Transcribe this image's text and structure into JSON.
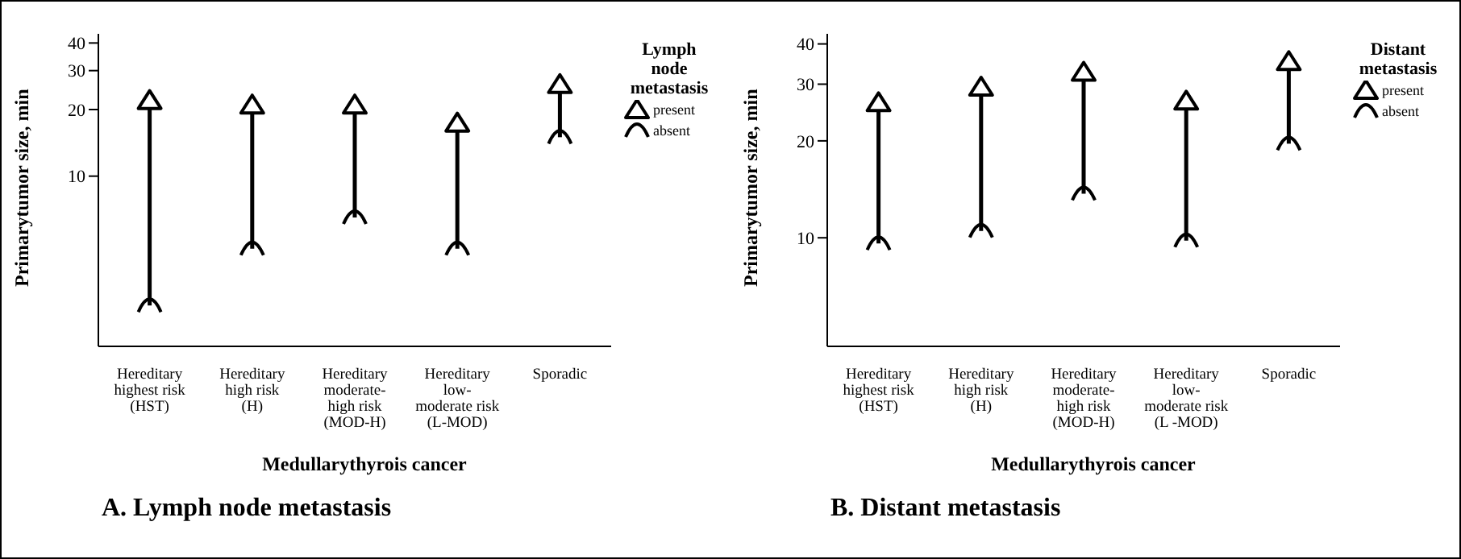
{
  "chart_data": [
    {
      "type": "scatter",
      "title": "A. Lymph node metastasis",
      "xlabel": "Medullarythyrois cancer",
      "ylabel": "Primarytumor size, min",
      "legend_title": "Lymph node metastasis",
      "legend": "right",
      "categories": [
        "Hereditary\nhighest risk\n(HST)",
        "Hereditary\nhigh risk\n(H)",
        "Hereditary\nmoderate-\nhigh risk\n(MOD-H)",
        "Hereditary\nlow-\nmoderate risk\n(L-MOD)",
        "Sporadic"
      ],
      "log": true,
      "ylim": [
        1.7,
        44
      ],
      "yticks": [
        10,
        20,
        30,
        40
      ],
      "grid": false,
      "series": [
        {
          "type": "line",
          "color": "#000000",
          "x": [
            "Hereditary\nhighest risk\n(HST)",
            "Hereditary\nhighest risk\n(HST)"
          ],
          "values": [
            2.6,
            22
          ]
        },
        {
          "type": "line",
          "color": "#000000",
          "x": [
            "Hereditary\nhigh risk\n(H)",
            "Hereditary\nhigh risk\n(H)"
          ],
          "values": [
            4.7,
            21
          ]
        },
        {
          "type": "line",
          "color": "#000000",
          "x": [
            "Hereditary\nmoderate-\nhigh risk\n(MOD-H)",
            "Hereditary\nmoderate-\nhigh risk\n(MOD-H)"
          ],
          "values": [
            6.5,
            21
          ]
        },
        {
          "type": "line",
          "color": "#000000",
          "x": [
            "Hereditary\nlow-\nmoderate risk\n(L-MOD)",
            "Hereditary\nlow-\nmoderate risk\n(L-MOD)"
          ],
          "values": [
            4.7,
            17.4
          ]
        },
        {
          "type": "line",
          "color": "#000000",
          "x": [
            "Sporadic",
            "Sporadic"
          ],
          "values": [
            15,
            26
          ]
        },
        {
          "name": "present",
          "color": "#000000",
          "marker": "triangle",
          "values": [
            22,
            21,
            21,
            17.4,
            26
          ]
        },
        {
          "name": "absent",
          "color": "#000000",
          "values": [
            2.6,
            4.7,
            6.5,
            4.7,
            15
          ]
        }
      ]
    },
    {
      "type": "scatter",
      "title": "B. Distant metastasis",
      "xlabel": "Medullarythyrois cancer",
      "ylabel": "Primarytumor size, min",
      "legend_title": "Distant metastasis",
      "legend": "right",
      "categories": [
        "Hereditary\nhighest risk\n(HST)",
        "Hereditary\nhigh risk\n(H)",
        "Hereditary\nmoderate-\nhigh risk\n(MOD-H)",
        "Hereditary\nlow-\nmoderate risk\n(L -MOD)",
        "Sporadic"
      ],
      "log": true,
      "ylim": [
        4.6,
        43
      ],
      "yticks": [
        10,
        20,
        30,
        40
      ],
      "grid": false,
      "series": [
        {
          "type": "line",
          "color": "#000000",
          "x": [
            "Hereditary\nhighest risk\n(HST)",
            "Hereditary\nhighest risk\n(HST)"
          ],
          "values": [
            9.6,
            26.3
          ]
        },
        {
          "type": "line",
          "color": "#000000",
          "x": [
            "Hereditary\nhigh risk\n(H)",
            "Hereditary\nhigh risk\n(H)"
          ],
          "values": [
            10.5,
            29.4
          ]
        },
        {
          "type": "line",
          "color": "#000000",
          "x": [
            "Hereditary\nmoderate-\nhigh risk\n(MOD-H)",
            "Hereditary\nmoderate-\nhigh risk\n(MOD-H)"
          ],
          "values": [
            13.7,
            32.7
          ]
        },
        {
          "type": "line",
          "color": "#000000",
          "x": [
            "Hereditary\nlow-\nmoderate risk\n(L -MOD)",
            "Hereditary\nlow-\nmoderate risk\n(L -MOD)"
          ],
          "values": [
            9.8,
            26.6
          ]
        },
        {
          "type": "line",
          "color": "#000000",
          "x": [
            "Sporadic",
            "Sporadic"
          ],
          "values": [
            19.6,
            35.3
          ]
        },
        {
          "name": "present",
          "color": "#000000",
          "marker": "triangle",
          "values": [
            26.3,
            29.4,
            32.7,
            26.6,
            35.3
          ]
        },
        {
          "name": "absent",
          "color": "#000000",
          "values": [
            9.6,
            10.5,
            13.7,
            9.8,
            19.6
          ]
        }
      ]
    }
  ]
}
